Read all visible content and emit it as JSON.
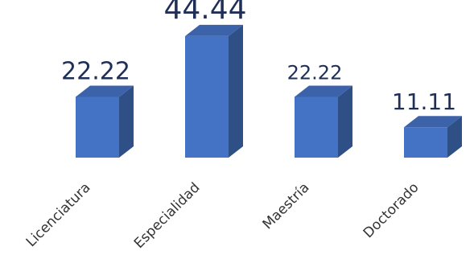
{
  "chart_data": {
    "type": "bar",
    "title": "",
    "xlabel": "",
    "ylabel": "",
    "categories": [
      "Licenciatura",
      "Especialidad",
      "Maestría",
      "Doctorado"
    ],
    "values": [
      22.22,
      44.44,
      22.22,
      11.11
    ],
    "data_labels": [
      "22.22",
      "44.44",
      "22.22",
      "11.11"
    ],
    "ylim": [
      0,
      50
    ],
    "grid": false,
    "legend": "none",
    "style": "3d-column",
    "colors": {
      "front": "#4472c4",
      "side": "#2f4f87",
      "top": "#3c63aa",
      "label": "#1f2f57",
      "tick": "#333333"
    }
  }
}
